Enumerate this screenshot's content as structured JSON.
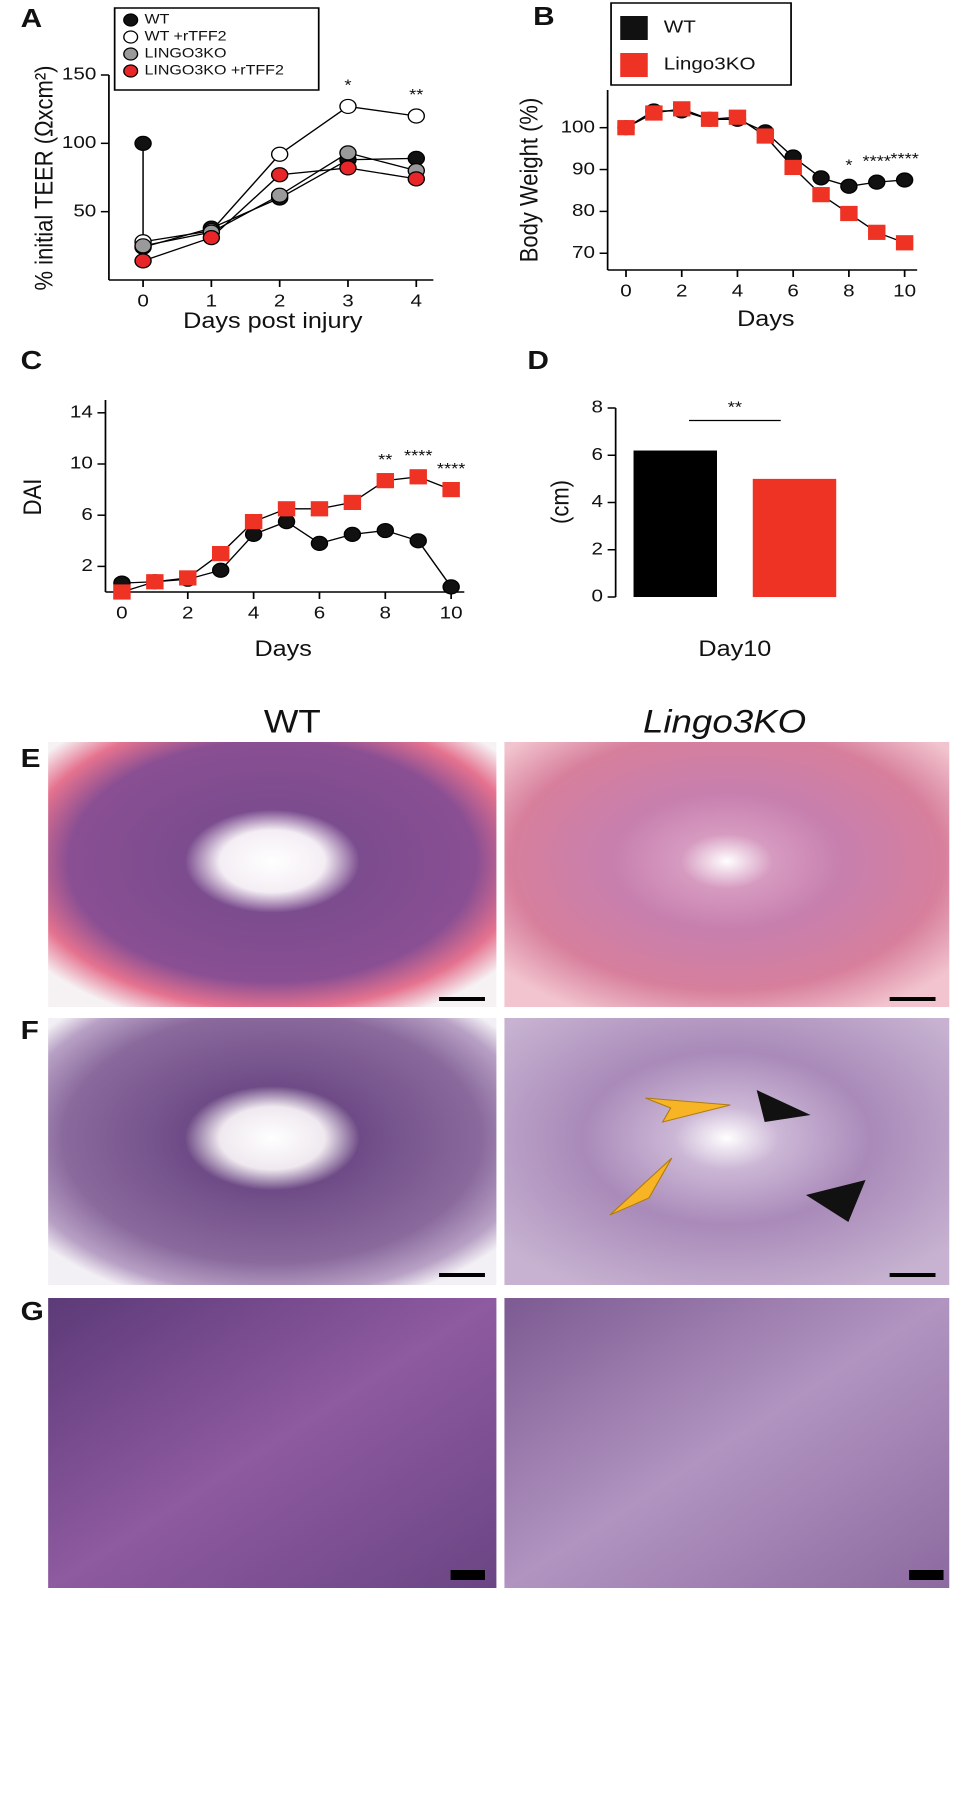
{
  "chart_data": [
    {
      "type": "line",
      "panel": "A",
      "xlabel": "Days post injury",
      "ylabel": "% initial TEER (Ωxcm²)",
      "x": [
        0,
        1,
        2,
        3,
        4
      ],
      "xlim": [
        -0.5,
        4.25
      ],
      "xticks": [
        0,
        1,
        2,
        3,
        4
      ],
      "ylim": [
        0,
        150
      ],
      "yticks": [
        50,
        100,
        150
      ],
      "line_color": "#000000",
      "series": [
        {
          "name": "WT",
          "color": "#111111",
          "marker": "circle",
          "x": [
            0,
            0,
            1,
            2,
            3,
            4
          ],
          "values": [
            100,
            24,
            38,
            60,
            88,
            89
          ]
        },
        {
          "name": "WT +rTFF2",
          "color": "#ffffff",
          "marker": "circle",
          "values": [
            28,
            36,
            92,
            127,
            120
          ]
        },
        {
          "name": "LINGO3KO",
          "color": "#9a9a9a",
          "marker": "circle",
          "values": [
            25,
            35,
            62,
            93,
            80
          ]
        },
        {
          "name": "LINGO3KO +rTFF2",
          "color": "#e8262a",
          "marker": "circle",
          "values": [
            14,
            31,
            77,
            82,
            74
          ]
        }
      ],
      "annotations": [
        {
          "text": "*",
          "x": 3
        },
        {
          "text": "**",
          "x": 4
        }
      ]
    },
    {
      "type": "line",
      "panel": "B",
      "xlabel": "Days",
      "ylabel": "Body Weight (%)",
      "x": [
        0,
        1,
        2,
        3,
        4,
        5,
        6,
        7,
        8,
        9,
        10
      ],
      "xlim": [
        -0.66,
        10.45
      ],
      "xticks": [
        0,
        2,
        4,
        6,
        8,
        10
      ],
      "ylim": [
        66,
        109
      ],
      "yticks": [
        70,
        80,
        90,
        100
      ],
      "line_color": "#000000",
      "series": [
        {
          "name": "WT",
          "color": "#111111",
          "marker": "circle",
          "values": [
            100,
            104,
            104,
            102,
            102,
            99,
            93,
            88,
            86,
            87,
            87.5
          ]
        },
        {
          "name": "Lingo3KO",
          "color": "#ee3224",
          "marker": "square",
          "values": [
            100,
            103.5,
            104.5,
            102,
            102.5,
            98,
            90.5,
            84,
            79.5,
            75,
            72.5
          ]
        }
      ],
      "annotations": [
        {
          "text": "*",
          "x": 8
        },
        {
          "text": "****",
          "x": 9
        },
        {
          "text": "****",
          "x": 10
        }
      ]
    },
    {
      "type": "line",
      "panel": "C",
      "ylabel": "DAI",
      "xlabel": "Days",
      "x": [
        0,
        1,
        2,
        3,
        4,
        5,
        6,
        7,
        8,
        9,
        10
      ],
      "xlim": [
        -0.5,
        10.4
      ],
      "xticks": [
        0,
        2,
        4,
        6,
        8,
        10
      ],
      "ylim": [
        0,
        15
      ],
      "yticks": [
        2,
        6,
        10,
        14
      ],
      "line_color": "#000000",
      "series": [
        {
          "name": "WT",
          "color": "#111111",
          "marker": "circle",
          "values": [
            0.7,
            0.8,
            1,
            1.7,
            4.5,
            5.5,
            3.8,
            4.5,
            4.8,
            4,
            0.4
          ]
        },
        {
          "name": "Lingo3KO",
          "color": "#ee3224",
          "marker": "square",
          "values": [
            0,
            0.8,
            1.1,
            3,
            5.5,
            6.5,
            6.5,
            7,
            8.7,
            9,
            8
          ]
        }
      ],
      "annotations": [
        {
          "text": "**",
          "x": 8
        },
        {
          "text": "****",
          "x": 9
        },
        {
          "text": "****",
          "x": 10
        }
      ]
    },
    {
      "type": "bar",
      "panel": "D",
      "ylabel": "(cm)",
      "xlabel": "Day10",
      "categories": [
        null,
        null
      ],
      "values": [
        6.2,
        5.0
      ],
      "colors": [
        "#000000",
        "#ee3224"
      ],
      "ylim": [
        0,
        8
      ],
      "yticks": [
        0,
        2,
        4,
        6,
        8
      ],
      "significance": "**"
    }
  ],
  "histology": {
    "columns": [
      "WT",
      "Lingo3KO"
    ],
    "rows": [
      "E",
      "F",
      "G"
    ]
  }
}
